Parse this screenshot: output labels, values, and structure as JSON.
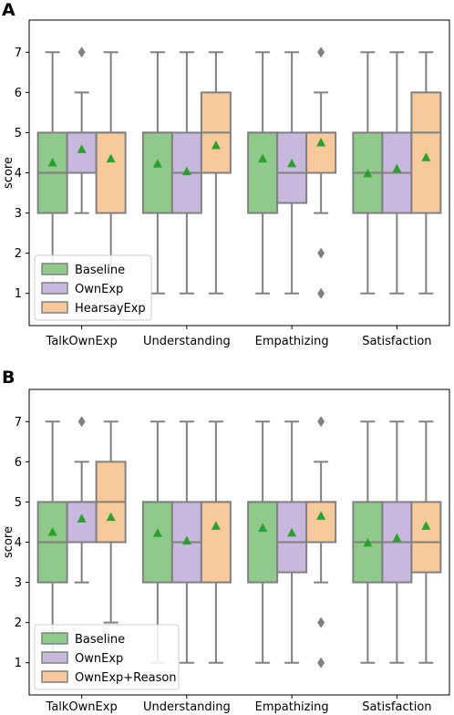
{
  "chart_data": [
    {
      "panel": "A",
      "type": "box",
      "ylabel": "score",
      "xlabel": "",
      "ylim": [
        0.2,
        7.8
      ],
      "yticks": [
        1,
        2,
        3,
        4,
        5,
        6,
        7
      ],
      "grid": false,
      "legend_position": "lower-left",
      "categories": [
        "TalkOwnExp",
        "Understanding",
        "Empathizing",
        "Satisfaction"
      ],
      "series": [
        {
          "name": "Baseline",
          "color": "#8fc98b",
          "boxes": [
            {
              "whislo": 1,
              "q1": 3,
              "med": 4,
              "q3": 5,
              "whishi": 7,
              "mean": 4.25,
              "fliers": []
            },
            {
              "whislo": 1,
              "q1": 3,
              "med": 5,
              "q3": 5,
              "whishi": 7,
              "mean": 4.22,
              "fliers": []
            },
            {
              "whislo": 1,
              "q1": 3,
              "med": 5,
              "q3": 5,
              "whishi": 7,
              "mean": 4.35,
              "fliers": []
            },
            {
              "whislo": 1,
              "q1": 3,
              "med": 4,
              "q3": 5,
              "whishi": 7,
              "mean": 3.98,
              "fliers": []
            }
          ]
        },
        {
          "name": "OwnExp",
          "color": "#c7b8dd",
          "boxes": [
            {
              "whislo": 3,
              "q1": 4,
              "med": 5,
              "q3": 5,
              "whishi": 6,
              "mean": 4.58,
              "fliers": [
                7
              ]
            },
            {
              "whislo": 1,
              "q1": 3,
              "med": 4,
              "q3": 5,
              "whishi": 7,
              "mean": 4.03,
              "fliers": []
            },
            {
              "whislo": 1,
              "q1": 3.25,
              "med": 4,
              "q3": 5,
              "whishi": 7,
              "mean": 4.23,
              "fliers": []
            },
            {
              "whislo": 1,
              "q1": 3,
              "med": 4,
              "q3": 5,
              "whishi": 7,
              "mean": 4.1,
              "fliers": []
            }
          ]
        },
        {
          "name": "HearsayExp",
          "color": "#f8c99b",
          "boxes": [
            {
              "whislo": 1,
              "q1": 3,
              "med": 5,
              "q3": 5,
              "whishi": 7,
              "mean": 4.35,
              "fliers": []
            },
            {
              "whislo": 1,
              "q1": 4,
              "med": 5,
              "q3": 6,
              "whishi": 7,
              "mean": 4.68,
              "fliers": []
            },
            {
              "whislo": 3,
              "q1": 4,
              "med": 5,
              "q3": 5,
              "whishi": 6,
              "mean": 4.75,
              "fliers": [
                7,
                2,
                1
              ]
            },
            {
              "whislo": 1,
              "q1": 3,
              "med": 5,
              "q3": 6,
              "whishi": 7,
              "mean": 4.38,
              "fliers": []
            }
          ]
        }
      ]
    },
    {
      "panel": "B",
      "type": "box",
      "ylabel": "score",
      "xlabel": "",
      "ylim": [
        0.2,
        7.8
      ],
      "yticks": [
        1,
        2,
        3,
        4,
        5,
        6,
        7
      ],
      "grid": false,
      "legend_position": "lower-left",
      "categories": [
        "TalkOwnExp",
        "Understanding",
        "Empathizing",
        "Satisfaction"
      ],
      "series": [
        {
          "name": "Baseline",
          "color": "#8fc98b",
          "boxes": [
            {
              "whislo": 1,
              "q1": 3,
              "med": 4,
              "q3": 5,
              "whishi": 7,
              "mean": 4.25,
              "fliers": []
            },
            {
              "whislo": 1,
              "q1": 3,
              "med": 5,
              "q3": 5,
              "whishi": 7,
              "mean": 4.22,
              "fliers": []
            },
            {
              "whislo": 1,
              "q1": 3,
              "med": 5,
              "q3": 5,
              "whishi": 7,
              "mean": 4.35,
              "fliers": []
            },
            {
              "whislo": 1,
              "q1": 3,
              "med": 4,
              "q3": 5,
              "whishi": 7,
              "mean": 3.98,
              "fliers": []
            }
          ]
        },
        {
          "name": "OwnExp",
          "color": "#c7b8dd",
          "boxes": [
            {
              "whislo": 3,
              "q1": 4,
              "med": 5,
              "q3": 5,
              "whishi": 6,
              "mean": 4.58,
              "fliers": [
                7
              ]
            },
            {
              "whislo": 1,
              "q1": 3,
              "med": 4,
              "q3": 5,
              "whishi": 7,
              "mean": 4.03,
              "fliers": []
            },
            {
              "whislo": 1,
              "q1": 3.25,
              "med": 4,
              "q3": 5,
              "whishi": 7,
              "mean": 4.23,
              "fliers": []
            },
            {
              "whislo": 1,
              "q1": 3,
              "med": 4,
              "q3": 5,
              "whishi": 7,
              "mean": 4.1,
              "fliers": []
            }
          ]
        },
        {
          "name": "OwnExp+Reason",
          "color": "#f8c99b",
          "boxes": [
            {
              "whislo": 2,
              "q1": 4,
              "med": 5,
              "q3": 6,
              "whishi": 7,
              "mean": 4.62,
              "fliers": []
            },
            {
              "whislo": 1,
              "q1": 3,
              "med": 5,
              "q3": 5,
              "whishi": 7,
              "mean": 4.4,
              "fliers": []
            },
            {
              "whislo": 3,
              "q1": 4,
              "med": 5,
              "q3": 5,
              "whishi": 6,
              "mean": 4.65,
              "fliers": [
                7,
                2,
                1
              ]
            },
            {
              "whislo": 1,
              "q1": 3.25,
              "med": 4,
              "q3": 5,
              "whishi": 7,
              "mean": 4.4,
              "fliers": []
            }
          ]
        }
      ]
    }
  ],
  "style": {
    "box_edge_color": "#808080",
    "mean_marker_color": "#2ca02c",
    "flier_color": "#808080",
    "axis_color": "#000000"
  }
}
